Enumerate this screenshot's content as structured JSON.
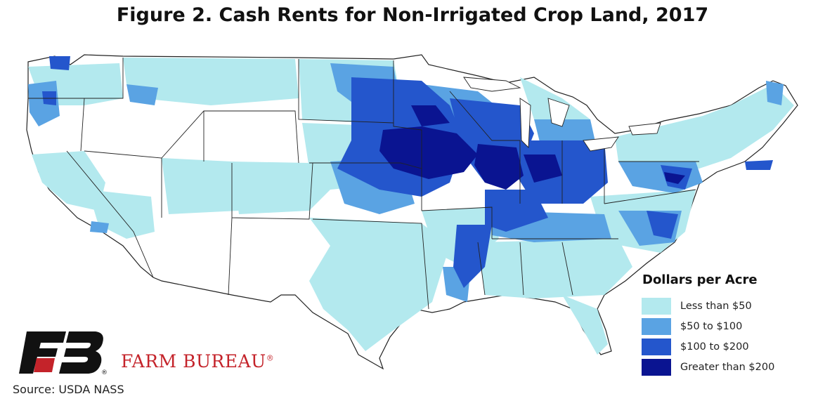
{
  "title": "Figure 2. Cash Rents for Non-Irrigated Crop Land, 2017",
  "legend": {
    "title": "Dollars per Acre",
    "items": [
      {
        "label": "Less than $50",
        "color": "#b3e9ee"
      },
      {
        "label": "$50 to $100",
        "color": "#5aa3e3"
      },
      {
        "label": "$100 to $200",
        "color": "#2456cc"
      },
      {
        "label": "Greater than $200",
        "color": "#0a1491"
      }
    ]
  },
  "brand": {
    "name": "FARM BUREAU",
    "reg_mark": "®",
    "logo_color": "#111111",
    "accent_color": "#c4232a"
  },
  "source": "Source: USDA NASS",
  "colors": {
    "none": "#ffffff",
    "border": "#222222"
  }
}
